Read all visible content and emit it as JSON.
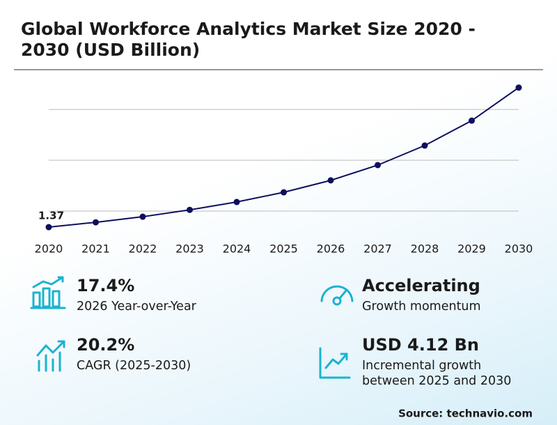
{
  "title": "Global Workforce Analytics Market Size 2020 - 2030 (USD Billion)",
  "title_lines": [
    "Global Workforce Analytics Market Size 2020 -",
    "2030 (USD Billion)"
  ],
  "chart_data": {
    "type": "line",
    "categories": [
      "2020",
      "2021",
      "2022",
      "2023",
      "2024",
      "2025",
      "2026",
      "2027",
      "2028",
      "2029",
      "2030"
    ],
    "series": [
      {
        "name": "Market Size",
        "color": "#0d0f5c",
        "values": [
          1.37,
          1.56,
          1.78,
          2.05,
          2.36,
          2.74,
          3.21,
          3.81,
          4.58,
          5.56,
          6.86
        ]
      }
    ],
    "ylim": [
      0,
      7.4
    ],
    "yticks": [
      2,
      4,
      6
    ],
    "grid": true
  },
  "stats": [
    {
      "value": "17.4%",
      "label": [
        "2026 Year-over-Year"
      ]
    },
    {
      "value": "Accelerating",
      "label": [
        "Growth momentum"
      ]
    },
    {
      "value": "20.2%",
      "label": [
        "CAGR (2025-2030)"
      ]
    },
    {
      "value": "USD 4.12 Bn",
      "label": [
        "Incremental growth",
        "between 2025 and 2030"
      ]
    }
  ],
  "source": "Source: technavio.com"
}
